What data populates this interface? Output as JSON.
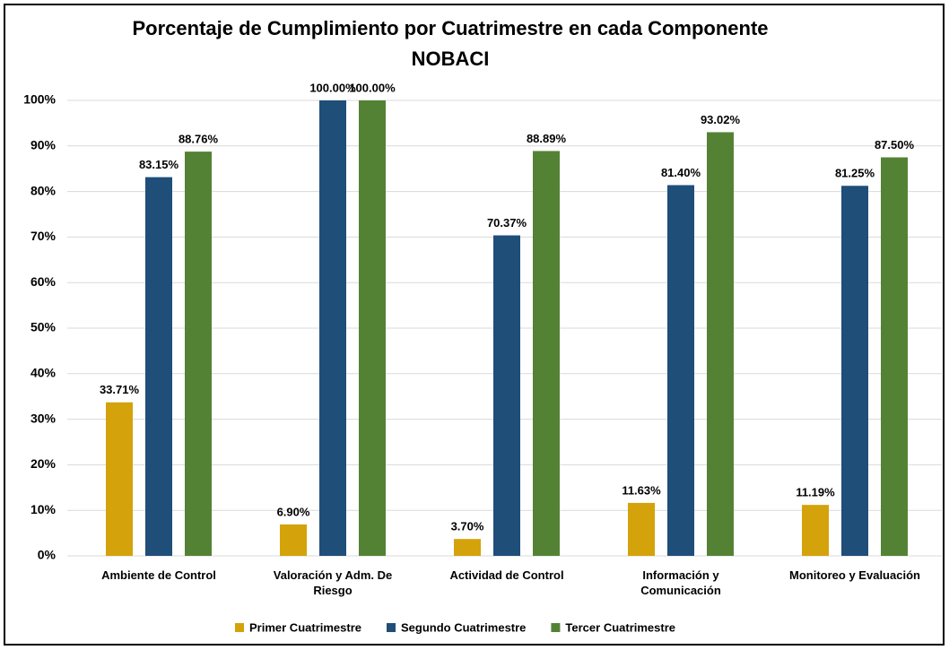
{
  "chart_data": {
    "type": "bar",
    "title": "Porcentaje de Cumplimiento por Cuatrimestre en cada Componente",
    "subtitle": "NOBACI",
    "categories": [
      "Ambiente de Control",
      "Valoración y Adm. De Riesgo",
      "Actividad de Control",
      "Información y Comunicación",
      "Monitoreo y Evaluación"
    ],
    "series": [
      {
        "name": "Primer Cuatrimestre",
        "color": "#d4a20a",
        "values": [
          33.71,
          6.9,
          3.7,
          11.63,
          11.19
        ],
        "value_labels": [
          "33.71%",
          "6.90%",
          "3.70%",
          "11.63%",
          "11.19%"
        ]
      },
      {
        "name": "Segundo Cuatrimestre",
        "color": "#1f4e79",
        "values": [
          83.15,
          100,
          70.37,
          81.4,
          81.25
        ],
        "value_labels": [
          "83.15%",
          "100.00%",
          "70.37%",
          "81.40%",
          "81.25%"
        ]
      },
      {
        "name": "Tercer Cuatrimestre",
        "color": "#548235",
        "values": [
          88.76,
          100,
          88.89,
          93.02,
          87.5
        ],
        "value_labels": [
          "88.76%",
          "100.00%",
          "88.89%",
          "93.02%",
          "87.50%"
        ]
      }
    ],
    "ylim": [
      0,
      100
    ],
    "yticks": [
      {
        "value": 0,
        "label": "0%"
      },
      {
        "value": 10,
        "label": "10%"
      },
      {
        "value": 20,
        "label": "20%"
      },
      {
        "value": 30,
        "label": "30%"
      },
      {
        "value": 40,
        "label": "40%"
      },
      {
        "value": 50,
        "label": "50%"
      },
      {
        "value": 60,
        "label": "60%"
      },
      {
        "value": 70,
        "label": "70%"
      },
      {
        "value": 80,
        "label": "80%"
      },
      {
        "value": 90,
        "label": "90%"
      },
      {
        "value": 100,
        "label": "100%"
      }
    ],
    "grid": true,
    "legend": "bottom"
  }
}
